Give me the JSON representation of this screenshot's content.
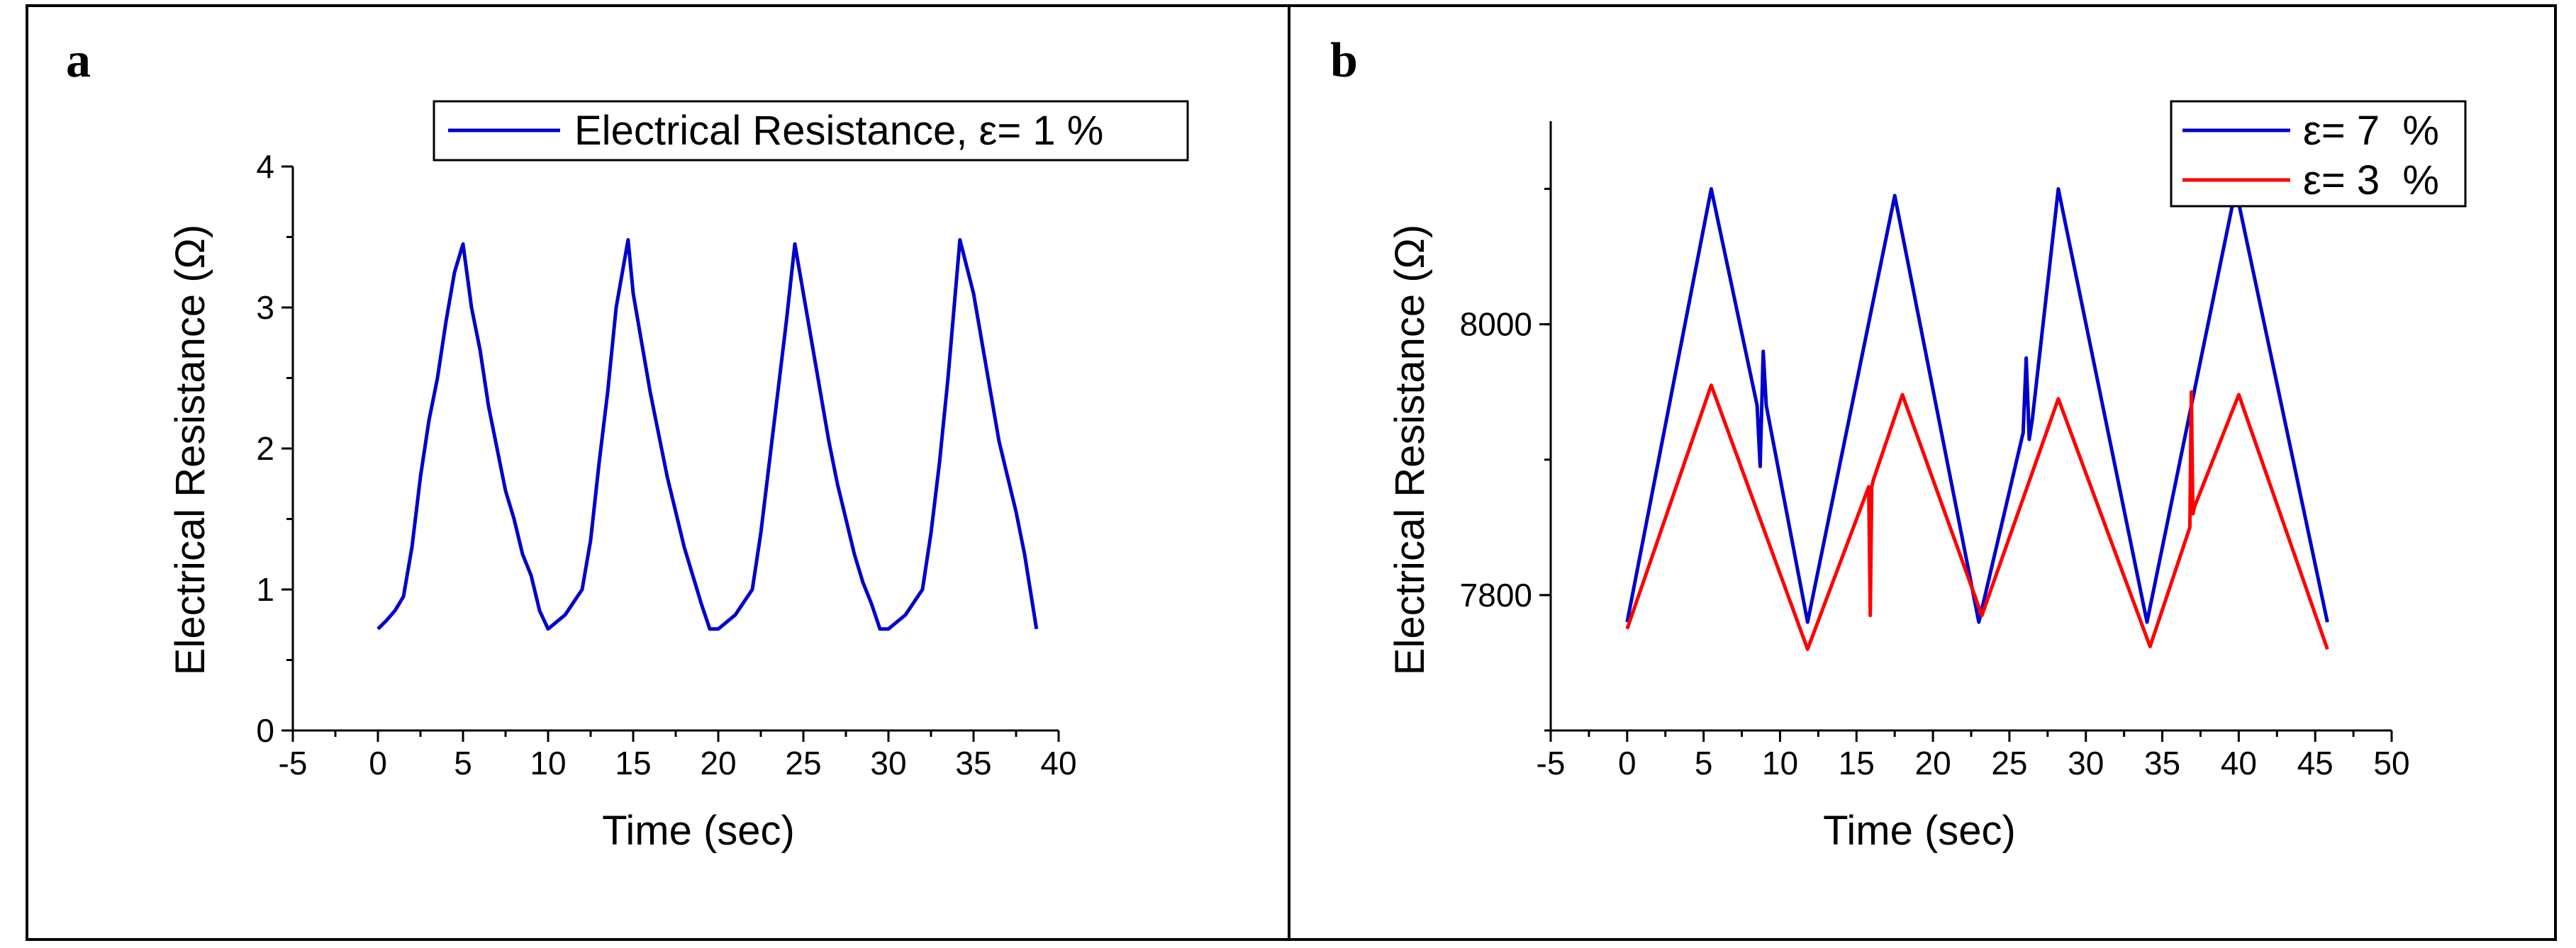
{
  "chart_data": [
    {
      "panel_label": "a",
      "type": "line",
      "title": "",
      "xlabel": "Time (sec)",
      "ylabel": "Electrical Resistance (Ω)",
      "xlim": [
        -5,
        40
      ],
      "ylim": [
        0,
        4
      ],
      "xticks": [
        "-5",
        "0",
        "5",
        "10",
        "15",
        "20",
        "25",
        "30",
        "35",
        "40"
      ],
      "yticks": [
        "0",
        "1",
        "2",
        "3",
        "4"
      ],
      "legend_position": "top-right",
      "series": [
        {
          "name": "Electrical Resistance, ε= 1 %",
          "color": "#0000cc",
          "x": [
            0,
            0.5,
            1,
            1.5,
            2,
            2.5,
            3,
            3.5,
            4,
            4.5,
            5,
            5.5,
            6,
            6.5,
            7,
            7.5,
            8,
            8.5,
            9,
            9.5,
            10,
            11,
            12,
            12.5,
            13,
            13.5,
            14,
            14.7,
            15,
            15.5,
            16,
            16.5,
            17,
            17.5,
            18,
            18.5,
            19,
            19.5,
            20,
            21,
            22,
            22.5,
            23,
            23.5,
            24,
            24.5,
            25,
            25.5,
            26,
            26.5,
            27,
            27.5,
            28,
            28.5,
            29,
            29.5,
            30,
            31,
            32,
            32.5,
            33,
            33.5,
            34.2,
            35,
            35.5,
            36,
            36.5,
            37,
            37.5,
            38,
            38.7
          ],
          "y": [
            0.72,
            0.78,
            0.85,
            0.95,
            1.3,
            1.8,
            2.2,
            2.5,
            2.9,
            3.25,
            3.45,
            3.0,
            2.7,
            2.3,
            2.0,
            1.7,
            1.5,
            1.25,
            1.1,
            0.85,
            0.72,
            0.82,
            1.0,
            1.35,
            1.9,
            2.4,
            3.0,
            3.48,
            3.1,
            2.75,
            2.4,
            2.1,
            1.8,
            1.55,
            1.3,
            1.1,
            0.9,
            0.72,
            0.72,
            0.82,
            1.0,
            1.4,
            1.9,
            2.4,
            2.9,
            3.45,
            3.1,
            2.75,
            2.4,
            2.05,
            1.75,
            1.5,
            1.25,
            1.05,
            0.9,
            0.72,
            0.72,
            0.82,
            1.0,
            1.4,
            1.9,
            2.5,
            3.48,
            3.1,
            2.75,
            2.4,
            2.05,
            1.8,
            1.55,
            1.25,
            0.72
          ]
        }
      ]
    },
    {
      "panel_label": "b",
      "type": "line",
      "title": "",
      "xlabel": "Time (sec)",
      "ylabel": "Electrical Resistance (Ω)",
      "xlim": [
        -5,
        50
      ],
      "ylim": [
        7700,
        8150
      ],
      "xticks": [
        "-5",
        "0",
        "5",
        "10",
        "15",
        "20",
        "25",
        "30",
        "35",
        "40",
        "45",
        "50"
      ],
      "yticks": [
        "7800",
        "8000"
      ],
      "ytick_values": [
        7800,
        8000
      ],
      "legend_position": "top-right",
      "series": [
        {
          "name": "ε= 7  %",
          "color": "#0000cc",
          "x": [
            0,
            5.5,
            8.5,
            8.7,
            8.9,
            9.1,
            11.8,
            17.5,
            23,
            25.9,
            26.1,
            26.3,
            26.5,
            28.2,
            34,
            39.8,
            45.8
          ],
          "y": [
            7780,
            8100,
            7940,
            7895,
            7980,
            7940,
            7780,
            8095,
            7780,
            7920,
            7975,
            7915,
            7930,
            8100,
            7780,
            8100,
            7780
          ],
          "line_label": "ε= 7 %"
        },
        {
          "name": "ε= 3  %",
          "color": "#ff0000",
          "x": [
            0,
            5.5,
            11.8,
            15.8,
            15.9,
            16.0,
            16.1,
            18,
            23.2,
            28.2,
            34.2,
            36.8,
            36.9,
            37.0,
            37.1,
            40,
            45.8
          ],
          "y": [
            7775,
            7955,
            7760,
            7880,
            7785,
            7880,
            7885,
            7948,
            7785,
            7945,
            7762,
            7850,
            7950,
            7860,
            7865,
            7948,
            7760
          ],
          "line_label": "ε= 3 %"
        }
      ]
    }
  ]
}
